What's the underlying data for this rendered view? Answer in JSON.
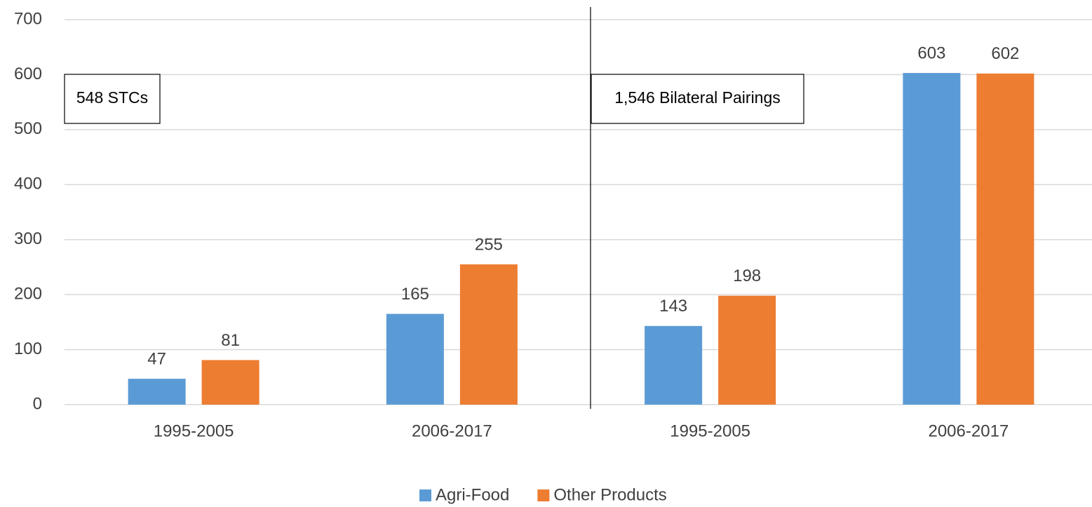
{
  "chart_data": {
    "type": "bar",
    "categories": [
      "1995-2005",
      "2006-2017",
      "1995-2005",
      "2006-2017"
    ],
    "series": [
      {
        "name": "Agri-Food",
        "color": "#5b9bd5",
        "values": [
          47,
          165,
          143,
          603
        ]
      },
      {
        "name": "Other Products",
        "color": "#ed7d31",
        "values": [
          81,
          255,
          198,
          602
        ]
      }
    ],
    "annotations": [
      "548 STCs",
      "1,546 Bilateral Pairings"
    ],
    "ylim": [
      0,
      700
    ],
    "yticks": [
      0,
      100,
      200,
      300,
      400,
      500,
      600,
      700
    ],
    "grid": true,
    "legend": "bottom"
  }
}
